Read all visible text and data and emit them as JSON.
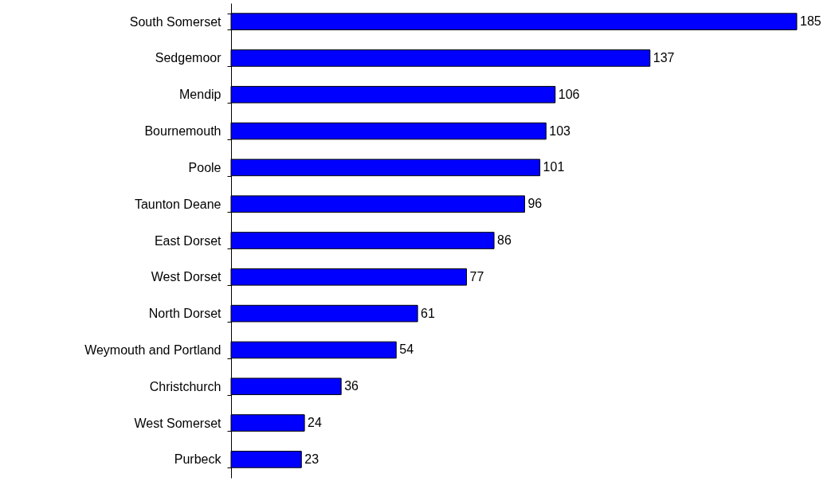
{
  "chart_data": {
    "type": "bar",
    "orientation": "horizontal",
    "categories": [
      "South Somerset",
      "Sedgemoor",
      "Mendip",
      "Bournemouth",
      "Poole",
      "Taunton Deane",
      "East Dorset",
      "West Dorset",
      "North Dorset",
      "Weymouth and Portland",
      "Christchurch",
      "West Somerset",
      "Purbeck"
    ],
    "values": [
      185,
      137,
      106,
      103,
      101,
      96,
      86,
      77,
      61,
      54,
      36,
      24,
      23
    ],
    "color": "#0000ff",
    "data_labels": true
  }
}
